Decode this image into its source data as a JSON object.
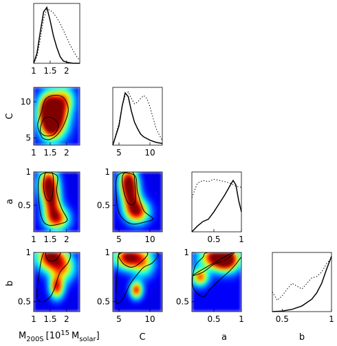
{
  "figure": {
    "colors": {
      "jet": [
        "#00008f",
        "#0000ff",
        "#0080ff",
        "#00ffff",
        "#80ff80",
        "#ffff00",
        "#ff8000",
        "#ff0000",
        "#800000"
      ],
      "frame": "#000000",
      "curve": "#000000"
    },
    "labels": {
      "xlabel_m": "M",
      "xlabel_m_sub": "200S",
      "xlabel_m_bracket": "[10",
      "xlabel_m_sup": "15",
      "xlabel_m_unit": "M",
      "xlabel_m_unit_sub": "solar",
      "xlabel_m_close": "]",
      "xlabel_c": "C",
      "xlabel_a": "a",
      "xlabel_b": "b",
      "ylabel_c": "C",
      "ylabel_a": "a",
      "ylabel_b": "b"
    }
  },
  "chart_data": {
    "type": "heatmap",
    "layout": "corner-plot",
    "parameters": [
      "M200S",
      "C",
      "a",
      "b"
    ],
    "ranges": {
      "M200S": [
        1.0,
        2.4
      ],
      "C": [
        4,
        12
      ],
      "a": [
        0.1,
        1.0
      ],
      "b": [
        0.4,
        1.0
      ]
    },
    "ticks": {
      "M200S": {
        "values": [
          1,
          1.5,
          2
        ],
        "labels": [
          "1",
          "1.5",
          "2"
        ]
      },
      "C": {
        "values": [
          5,
          10
        ],
        "labels": [
          "5",
          "10"
        ]
      },
      "a": {
        "values": [
          0.5,
          1
        ],
        "labels": [
          "0.5",
          "1"
        ]
      },
      "b": {
        "values": [
          0.5,
          1
        ],
        "labels": [
          "0.5",
          "1"
        ]
      }
    },
    "marginals": [
      {
        "param": "M200S",
        "solid": {
          "x": [
            1.0,
            1.1,
            1.2,
            1.3,
            1.4,
            1.5,
            1.6,
            1.7,
            1.8,
            1.9,
            2.0,
            2.1,
            2.2,
            2.3,
            2.4
          ],
          "y": [
            0.0,
            0.18,
            0.55,
            0.9,
            0.98,
            0.75,
            0.48,
            0.28,
            0.12,
            0.04,
            0.02,
            0.01,
            0.0,
            0.0,
            0.0
          ]
        },
        "dotted": {
          "x": [
            1.0,
            1.1,
            1.2,
            1.3,
            1.4,
            1.5,
            1.6,
            1.7,
            1.8,
            1.9,
            2.0,
            2.1,
            2.2,
            2.3,
            2.4
          ],
          "y": [
            0.0,
            0.12,
            0.42,
            0.78,
            0.95,
            0.93,
            0.88,
            0.8,
            0.7,
            0.58,
            0.45,
            0.33,
            0.22,
            0.12,
            0.05
          ]
        }
      },
      {
        "param": "C",
        "solid": {
          "x": [
            4,
            5,
            5.5,
            6,
            6.5,
            7,
            7.5,
            8,
            8.5,
            9,
            9.5,
            10,
            11,
            12
          ],
          "y": [
            0.0,
            0.35,
            0.7,
            0.95,
            0.88,
            0.62,
            0.42,
            0.3,
            0.2,
            0.15,
            0.12,
            0.09,
            0.05,
            0.03
          ]
        },
        "dotted": {
          "x": [
            4,
            5,
            5.5,
            6,
            6.5,
            7,
            7.5,
            8,
            8.5,
            9,
            9.5,
            10,
            11,
            12
          ],
          "y": [
            0.0,
            0.4,
            0.7,
            0.9,
            0.97,
            0.85,
            0.75,
            0.78,
            0.85,
            0.9,
            0.85,
            0.7,
            0.3,
            0.08
          ]
        }
      },
      {
        "param": "a",
        "solid": {
          "x": [
            0.1,
            0.2,
            0.3,
            0.4,
            0.5,
            0.6,
            0.7,
            0.8,
            0.85,
            0.9,
            0.95,
            1.0
          ],
          "y": [
            0.0,
            0.1,
            0.18,
            0.22,
            0.35,
            0.5,
            0.65,
            0.82,
            0.9,
            0.82,
            0.55,
            0.35
          ]
        },
        "dotted": {
          "x": [
            0.1,
            0.2,
            0.3,
            0.4,
            0.5,
            0.6,
            0.7,
            0.8,
            0.9,
            1.0
          ],
          "y": [
            0.6,
            0.85,
            0.9,
            0.88,
            0.92,
            0.9,
            0.88,
            0.85,
            0.8,
            0.78
          ]
        }
      },
      {
        "param": "b",
        "solid": {
          "x": [
            0.4,
            0.5,
            0.6,
            0.7,
            0.8,
            0.85,
            0.9,
            0.95,
            1.0
          ],
          "y": [
            0.0,
            0.01,
            0.04,
            0.1,
            0.22,
            0.33,
            0.5,
            0.75,
            0.98
          ]
        },
        "dotted": {
          "x": [
            0.4,
            0.45,
            0.5,
            0.55,
            0.6,
            0.65,
            0.7,
            0.75,
            0.8,
            0.85,
            0.9,
            0.95,
            1.0
          ],
          "y": [
            0.35,
            0.2,
            0.28,
            0.4,
            0.5,
            0.45,
            0.4,
            0.5,
            0.6,
            0.62,
            0.7,
            0.85,
            0.95
          ]
        }
      }
    ],
    "joints": [
      {
        "x": "M200S",
        "y": "C",
        "peaks": [
          [
            1.5,
            7.2,
            0.22,
            1.6,
            1.0
          ],
          [
            1.45,
            9.2,
            0.2,
            1.4,
            0.85
          ],
          [
            1.75,
            8.2,
            0.25,
            2.0,
            0.7
          ],
          [
            1.95,
            10.3,
            0.2,
            1.2,
            0.45
          ]
        ],
        "base": 0.12,
        "contours": [
          [
            [
              1.22,
              5.4
            ],
            [
              1.12,
              6.8
            ],
            [
              1.25,
              8.8
            ],
            [
              1.35,
              10.3
            ],
            [
              1.6,
              10.9
            ],
            [
              1.9,
              10.6
            ],
            [
              2.05,
              9.0
            ],
            [
              1.95,
              7.2
            ],
            [
              1.75,
              5.6
            ],
            [
              1.5,
              4.8
            ],
            [
              1.3,
              4.9
            ]
          ],
          [
            [
              1.2,
              6.0
            ],
            [
              1.3,
              7.6
            ],
            [
              1.55,
              7.8
            ],
            [
              1.75,
              6.8
            ],
            [
              1.62,
              5.5
            ],
            [
              1.35,
              5.3
            ]
          ]
        ]
      },
      {
        "x": "M200S",
        "y": "a",
        "peaks": [
          [
            1.45,
            0.82,
            0.2,
            0.16,
            1.0
          ],
          [
            1.7,
            0.3,
            0.25,
            0.12,
            0.85
          ],
          [
            1.55,
            0.55,
            0.18,
            0.15,
            0.75
          ]
        ],
        "base": 0.1,
        "contours": [
          [
            [
              1.2,
              0.95
            ],
            [
              1.15,
              0.6
            ],
            [
              1.25,
              0.3
            ],
            [
              1.45,
              0.2
            ],
            [
              1.8,
              0.22
            ],
            [
              2.02,
              0.28
            ],
            [
              1.85,
              0.45
            ],
            [
              1.7,
              0.7
            ],
            [
              1.7,
              0.95
            ]
          ],
          [
            [
              1.35,
              0.98
            ],
            [
              1.3,
              0.75
            ],
            [
              1.4,
              0.58
            ],
            [
              1.55,
              0.6
            ],
            [
              1.6,
              0.85
            ],
            [
              1.55,
              1.0
            ]
          ]
        ]
      },
      {
        "x": "C",
        "y": "a",
        "peaks": [
          [
            6.5,
            0.85,
            1.0,
            0.15,
            1.0
          ],
          [
            8.0,
            0.4,
            1.3,
            0.12,
            0.85
          ],
          [
            7.0,
            0.6,
            1.0,
            0.15,
            0.7
          ]
        ],
        "base": 0.1,
        "contours": [
          [
            [
              4.8,
              0.95
            ],
            [
              4.6,
              0.6
            ],
            [
              5.2,
              0.35
            ],
            [
              7.0,
              0.22
            ],
            [
              9.3,
              0.25
            ],
            [
              10.5,
              0.3
            ],
            [
              9.0,
              0.42
            ],
            [
              8.0,
              0.7
            ],
            [
              7.5,
              0.95
            ]
          ],
          [
            [
              5.6,
              0.95
            ],
            [
              5.8,
              0.7
            ],
            [
              6.6,
              0.52
            ],
            [
              7.6,
              0.55
            ],
            [
              7.6,
              0.8
            ],
            [
              7.2,
              1.0
            ]
          ]
        ]
      },
      {
        "x": "M200S",
        "y": "b",
        "peaks": [
          [
            1.5,
            0.96,
            0.28,
            0.1,
            1.0
          ],
          [
            1.7,
            0.65,
            0.15,
            0.08,
            0.85
          ],
          [
            1.9,
            0.85,
            0.25,
            0.1,
            0.6
          ]
        ],
        "base": 0.1,
        "contours": [
          [
            [
              1.1,
              0.55
            ],
            [
              1.15,
              0.75
            ],
            [
              1.28,
              0.98
            ],
            [
              1.5,
              1.0
            ],
            [
              2.08,
              1.0
            ],
            [
              2.05,
              0.9
            ],
            [
              1.8,
              0.8
            ],
            [
              1.65,
              0.65
            ],
            [
              1.5,
              0.55
            ],
            [
              1.25,
              0.5
            ]
          ],
          [
            [
              1.38,
              1.0
            ],
            [
              1.45,
              0.92
            ],
            [
              1.65,
              0.92
            ],
            [
              1.8,
              1.0
            ]
          ]
        ]
      },
      {
        "x": "C",
        "y": "b",
        "peaks": [
          [
            6.5,
            0.95,
            1.5,
            0.08,
            1.0
          ],
          [
            7.8,
            0.62,
            0.7,
            0.06,
            0.85
          ],
          [
            9.0,
            0.9,
            1.2,
            0.1,
            0.55
          ]
        ],
        "base": 0.1,
        "contours": [
          [
            [
              4.5,
              0.55
            ],
            [
              4.8,
              0.85
            ],
            [
              5.5,
              1.0
            ],
            [
              11.0,
              1.0
            ],
            [
              10.5,
              0.9
            ],
            [
              9.0,
              0.85
            ],
            [
              8.0,
              0.78
            ],
            [
              6.8,
              0.68
            ],
            [
              5.8,
              0.55
            ],
            [
              4.8,
              0.48
            ]
          ],
          [
            [
              5.2,
              1.0
            ],
            [
              5.5,
              0.9
            ],
            [
              7.0,
              0.85
            ],
            [
              8.5,
              0.9
            ],
            [
              9.5,
              1.0
            ]
          ]
        ]
      },
      {
        "x": "a",
        "y": "b",
        "peaks": [
          [
            0.55,
            0.95,
            0.2,
            0.08,
            1.0
          ],
          [
            0.25,
            0.75,
            0.1,
            0.06,
            0.75
          ],
          [
            0.75,
            0.92,
            0.15,
            0.08,
            0.8
          ]
        ],
        "base": 0.12,
        "contours": [
          [
            [
              0.12,
              0.65
            ],
            [
              0.15,
              0.85
            ],
            [
              0.3,
              0.95
            ],
            [
              0.4,
              1.0
            ],
            [
              1.0,
              1.0
            ],
            [
              0.95,
              0.92
            ],
            [
              0.8,
              0.82
            ],
            [
              0.6,
              0.72
            ],
            [
              0.42,
              0.62
            ],
            [
              0.3,
              0.55
            ]
          ],
          [
            [
              0.15,
              0.78
            ],
            [
              0.3,
              0.8
            ],
            [
              0.5,
              0.88
            ],
            [
              0.7,
              0.92
            ],
            [
              0.85,
              1.0
            ]
          ]
        ]
      }
    ]
  }
}
